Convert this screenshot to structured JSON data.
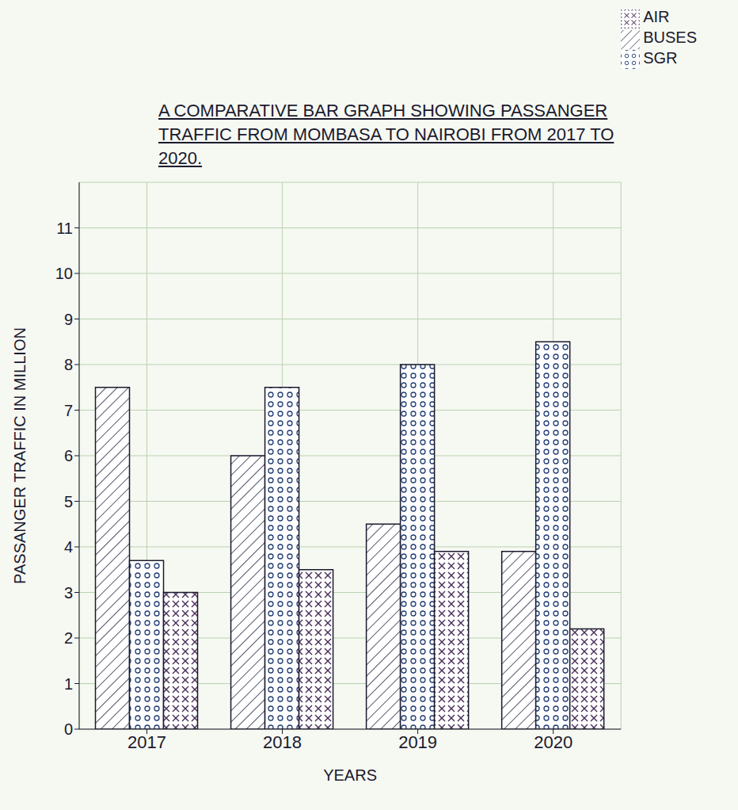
{
  "chart_data": {
    "type": "bar",
    "title": "A COMPARATIVE BAR GRAPH SHOWING PASSANGER TRAFFIC FROM MOMBASA TO NAIROBI FROM 2017 TO 2020.",
    "x_label": "YEARS",
    "y_label": "PASSANGER TRAFFIC IN MILLION",
    "categories": [
      "2017",
      "2018",
      "2019",
      "2020"
    ],
    "series": [
      {
        "name": "BUSES",
        "color": "#2b2d42",
        "values": [
          7.5,
          6.0,
          4.5,
          3.9
        ]
      },
      {
        "name": "SGR",
        "color": "#1f3b73",
        "values": [
          3.7,
          7.5,
          8.0,
          8.5
        ]
      },
      {
        "name": "AIR",
        "color": "#4a2f5a",
        "values": [
          3.0,
          3.5,
          3.9,
          2.2
        ]
      }
    ],
    "ylim": [
      0,
      12
    ],
    "yticks": [
      0,
      1,
      2,
      3,
      4,
      5,
      6,
      7,
      8,
      9,
      10,
      11
    ],
    "grid": true,
    "legend": "upper right"
  }
}
